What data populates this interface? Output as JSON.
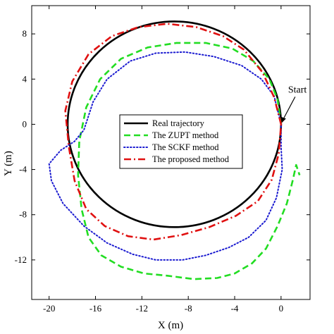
{
  "chart_data": {
    "type": "line",
    "xlabel": "X (m)",
    "ylabel": "Y (m)",
    "xlim": [
      -21.5,
      2.5
    ],
    "ylim": [
      -15.5,
      10.5
    ],
    "xticks": [
      -20,
      -16,
      -12,
      -8,
      -4,
      0
    ],
    "yticks": [
      8,
      4,
      0,
      -4,
      -8,
      -12
    ],
    "xtick_labels": [
      "-20",
      "-16",
      "-12",
      "-8",
      "-4",
      "0"
    ],
    "ytick_labels": [
      "8",
      "4",
      "0",
      "-4",
      "-8",
      "-12"
    ],
    "grid": false,
    "legend_position": "center",
    "annotation": {
      "text": "Start",
      "x": 0,
      "y": 0
    },
    "series": [
      {
        "name": "Real trajectory",
        "color": "#000000",
        "style": "solid",
        "shape": "circle",
        "center": [
          -9.2,
          0
        ],
        "radius_x": 9.2,
        "radius_y": 9.1
      },
      {
        "name": "The ZUPT method",
        "color": "#22dd22",
        "style": "dashed",
        "points": [
          [
            0,
            0
          ],
          [
            -0.3,
            2.2
          ],
          [
            -1.0,
            4.0
          ],
          [
            -2.4,
            5.6
          ],
          [
            -4.2,
            6.7
          ],
          [
            -6.5,
            7.2
          ],
          [
            -9.0,
            7.2
          ],
          [
            -11.5,
            6.8
          ],
          [
            -13.8,
            5.8
          ],
          [
            -15.6,
            4.0
          ],
          [
            -16.8,
            1.5
          ],
          [
            -17.4,
            -1.5
          ],
          [
            -17.5,
            -4.5
          ],
          [
            -17.2,
            -7.5
          ],
          [
            -16.6,
            -10.0
          ],
          [
            -15.5,
            -11.6
          ],
          [
            -13.8,
            -12.6
          ],
          [
            -11.8,
            -13.2
          ],
          [
            -9.8,
            -13.4
          ],
          [
            -7.5,
            -13.7
          ],
          [
            -5.5,
            -13.6
          ],
          [
            -4.0,
            -13.2
          ],
          [
            -2.5,
            -12.3
          ],
          [
            -1.3,
            -11.0
          ],
          [
            -0.3,
            -9.0
          ],
          [
            0.5,
            -7.0
          ],
          [
            1.0,
            -5.0
          ],
          [
            1.3,
            -3.6
          ],
          [
            1.6,
            -4.5
          ]
        ]
      },
      {
        "name": "The SCKF method",
        "color": "#1a1ad0",
        "style": "dotted",
        "points": [
          [
            0,
            0
          ],
          [
            -0.6,
            2.5
          ],
          [
            -1.7,
            4.0
          ],
          [
            -3.4,
            5.2
          ],
          [
            -5.8,
            6.0
          ],
          [
            -8.3,
            6.4
          ],
          [
            -10.8,
            6.3
          ],
          [
            -13.0,
            5.6
          ],
          [
            -15.0,
            4.0
          ],
          [
            -16.2,
            2.0
          ],
          [
            -17.0,
            -0.5
          ],
          [
            -17.8,
            -1.5
          ],
          [
            -19.0,
            -2.3
          ],
          [
            -20.0,
            -3.5
          ],
          [
            -19.8,
            -5.0
          ],
          [
            -18.8,
            -7.0
          ],
          [
            -17.0,
            -9.0
          ],
          [
            -15.0,
            -10.5
          ],
          [
            -12.8,
            -11.5
          ],
          [
            -10.8,
            -12.0
          ],
          [
            -8.5,
            -12.0
          ],
          [
            -6.5,
            -11.6
          ],
          [
            -4.5,
            -10.9
          ],
          [
            -2.8,
            -10.0
          ],
          [
            -1.3,
            -8.5
          ],
          [
            -0.4,
            -6.5
          ],
          [
            0.1,
            -4.0
          ],
          [
            0.0,
            -2.0
          ],
          [
            0,
            0
          ]
        ]
      },
      {
        "name": "The proposed method",
        "color": "#e01010",
        "style": "dashdot",
        "points": [
          [
            0,
            0
          ],
          [
            -0.6,
            2.4
          ],
          [
            -1.6,
            4.6
          ],
          [
            -3.2,
            6.6
          ],
          [
            -5.0,
            7.8
          ],
          [
            -7.3,
            8.6
          ],
          [
            -9.8,
            8.9
          ],
          [
            -12.3,
            8.6
          ],
          [
            -14.6,
            7.8
          ],
          [
            -16.6,
            6.2
          ],
          [
            -18.0,
            3.8
          ],
          [
            -18.6,
            1.2
          ],
          [
            -18.3,
            -2.0
          ],
          [
            -17.8,
            -5.0
          ],
          [
            -16.8,
            -7.5
          ],
          [
            -15.2,
            -9.0
          ],
          [
            -13.2,
            -9.9
          ],
          [
            -11.0,
            -10.2
          ],
          [
            -8.6,
            -9.8
          ],
          [
            -6.2,
            -9.1
          ],
          [
            -3.9,
            -8.1
          ],
          [
            -2.0,
            -6.8
          ],
          [
            -0.8,
            -4.9
          ],
          [
            -0.2,
            -2.6
          ],
          [
            0,
            0
          ]
        ]
      }
    ]
  }
}
